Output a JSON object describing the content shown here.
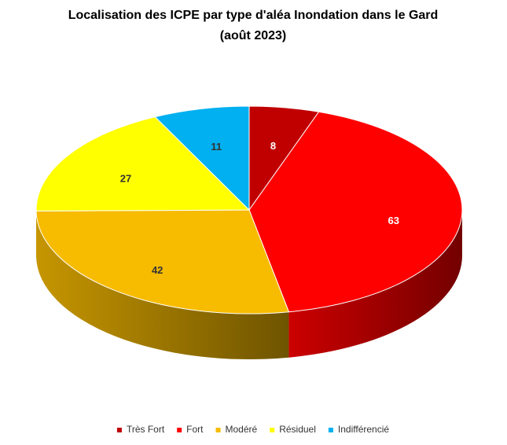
{
  "chart_data": {
    "type": "pie3d",
    "title": "Localisation des ICPE par type d'aléa Inondation dans le Gard",
    "subtitle": "(août 2023)",
    "categories": [
      "Très Fort",
      "Fort",
      "Modéré",
      "Résiduel",
      "Indifférencié"
    ],
    "values": [
      8,
      63,
      42,
      27,
      11
    ],
    "colors": [
      "#c00000",
      "#ff0000",
      "#f7bb00",
      "#ffff00",
      "#00b0f0"
    ],
    "label_colors": [
      "#ffffff",
      "#ffffff",
      "#333333",
      "#333333",
      "#333333"
    ],
    "legend": "bottom"
  }
}
